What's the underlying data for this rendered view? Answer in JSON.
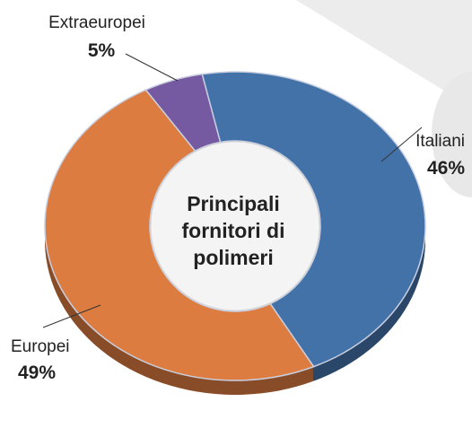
{
  "chart_data": {
    "type": "donut",
    "title": "Principali fornitori di polimeri",
    "categories": [
      "Italiani",
      "Europei",
      "Extraeuropei"
    ],
    "values": [
      46,
      49,
      5
    ],
    "value_labels": [
      "46%",
      "49%",
      "5%"
    ],
    "colors": [
      "#4372a9",
      "#dc7c40",
      "#7559a1"
    ]
  }
}
